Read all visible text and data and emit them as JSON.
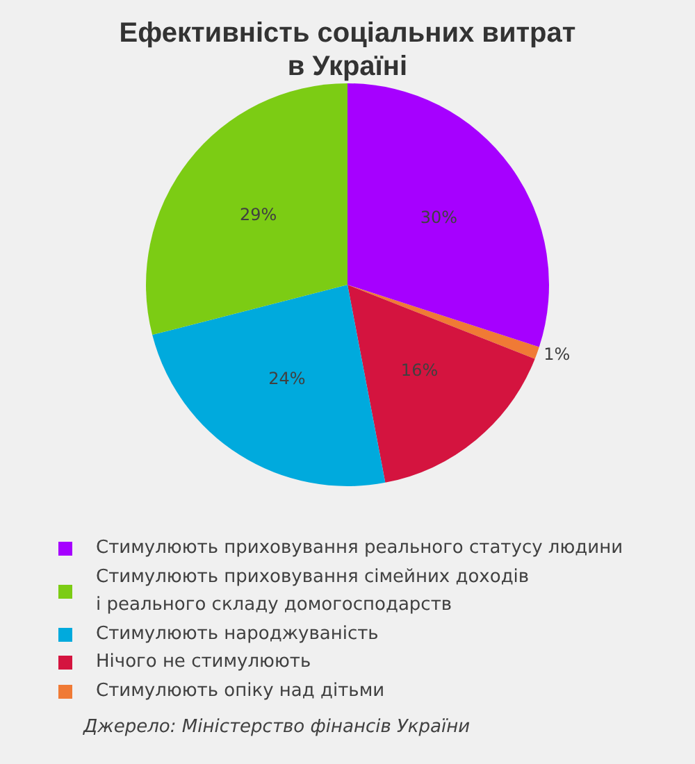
{
  "chart_data": {
    "type": "pie",
    "title": "Ефективність соціальних витрат в Україні",
    "categories": [
      "Стимулюють приховування реального статусу людини",
      "Стимулюють приховування сімейних доходів\nі реального складу домогосподарств",
      "Стимулюють народжуваність",
      "Нічого не стимулюють",
      "Стимулюють опіку над дітьми"
    ],
    "values": [
      30,
      29,
      24,
      16,
      1
    ],
    "colors": [
      "#a600ff",
      "#7ccc14",
      "#00aadd",
      "#d4143f",
      "#f07a35"
    ],
    "value_labels": [
      "30%",
      "29%",
      "24%",
      "16%",
      "1%"
    ],
    "legend": "bottom",
    "annotations": [
      "Джерело: Міністерство фінансів України"
    ]
  }
}
